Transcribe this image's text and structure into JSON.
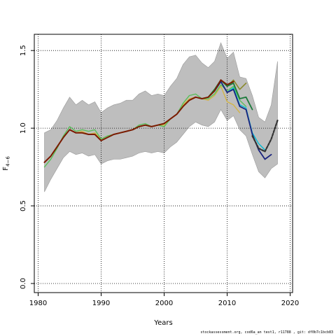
{
  "chart_data": {
    "type": "line",
    "xlabel": "Years",
    "ylabel": "F",
    "ylabel_subscript": "4−6",
    "xlim": [
      1980,
      2020
    ],
    "ylim": [
      0.0,
      1.6
    ],
    "x_ticks": [
      1980,
      1990,
      2000,
      2010,
      2020
    ],
    "y_ticks": [
      0.0,
      0.5,
      1.0,
      1.5
    ],
    "y_tick_labels": [
      "0.0",
      "0.5",
      "1.0",
      "1.5"
    ],
    "grid": "dotted",
    "confidence_band": {
      "color": "#bebebe",
      "x": [
        1981,
        1982,
        1983,
        1984,
        1985,
        1986,
        1987,
        1988,
        1989,
        1990,
        1991,
        1992,
        1993,
        1994,
        1995,
        1996,
        1997,
        1998,
        1999,
        2000,
        2001,
        2002,
        2003,
        2004,
        2005,
        2006,
        2007,
        2008,
        2009,
        2010,
        2011,
        2012,
        2013,
        2014,
        2015,
        2016,
        2017,
        2018
      ],
      "upper": [
        0.97,
        0.99,
        1.05,
        1.13,
        1.2,
        1.15,
        1.18,
        1.15,
        1.17,
        1.1,
        1.13,
        1.15,
        1.16,
        1.18,
        1.18,
        1.22,
        1.24,
        1.21,
        1.22,
        1.21,
        1.27,
        1.32,
        1.41,
        1.46,
        1.47,
        1.42,
        1.39,
        1.43,
        1.55,
        1.45,
        1.49,
        1.33,
        1.32,
        1.21,
        1.07,
        1.04,
        1.15,
        1.43
      ],
      "lower": [
        0.59,
        0.67,
        0.74,
        0.81,
        0.85,
        0.83,
        0.84,
        0.82,
        0.83,
        0.77,
        0.79,
        0.8,
        0.8,
        0.81,
        0.82,
        0.84,
        0.85,
        0.84,
        0.85,
        0.84,
        0.88,
        0.91,
        0.96,
        1.01,
        1.04,
        1.02,
        1.01,
        1.04,
        1.12,
        1.05,
        1.08,
        0.99,
        0.95,
        0.83,
        0.72,
        0.68,
        0.74,
        0.77
      ]
    },
    "series": [
      {
        "color": "#d2b446",
        "width": 1.4,
        "dash": "",
        "x": [
          1981,
          1982,
          1983,
          1984,
          1985,
          1986,
          1987,
          1988,
          1989,
          1990,
          1991,
          1992,
          1993,
          1994,
          1995,
          1996,
          1997,
          1998,
          1999,
          2000,
          2001,
          2002,
          2003,
          2004,
          2005,
          2006,
          2007,
          2008,
          2009,
          2010,
          2011,
          2012
        ],
        "values": [
          0.78,
          0.82,
          0.88,
          0.94,
          0.99,
          0.97,
          0.98,
          0.96,
          0.97,
          0.93,
          0.95,
          0.96,
          0.97,
          0.98,
          0.99,
          1.01,
          1.02,
          1.01,
          1.02,
          1.02,
          1.06,
          1.09,
          1.15,
          1.19,
          1.2,
          1.19,
          1.18,
          1.21,
          1.27,
          1.17,
          1.15,
          1.1
        ]
      },
      {
        "color": "#5bbf5b",
        "width": 1.4,
        "dash": "",
        "x": [
          1981,
          1982,
          1983,
          1984,
          1985,
          1986,
          1987,
          1988,
          1989,
          1990,
          1991,
          1992,
          1993,
          1994,
          1995,
          1996,
          1997,
          1998,
          1999,
          2000,
          2001,
          2002,
          2003,
          2004,
          2005,
          2006,
          2007,
          2008,
          2009,
          2010,
          2011,
          2012,
          2013
        ],
        "values": [
          0.75,
          0.8,
          0.87,
          0.95,
          1.01,
          0.98,
          0.99,
          0.98,
          0.99,
          0.93,
          0.95,
          0.96,
          0.97,
          0.98,
          0.99,
          1.02,
          1.03,
          1.01,
          1.02,
          1.01,
          1.06,
          1.09,
          1.16,
          1.21,
          1.22,
          1.19,
          1.19,
          1.22,
          1.28,
          1.24,
          1.27,
          1.18,
          1.14
        ]
      },
      {
        "color": "#8a8a2a",
        "width": 1.6,
        "dash": "",
        "x": [
          2007,
          2008,
          2009,
          2010,
          2011,
          2012,
          2013
        ],
        "values": [
          1.2,
          1.24,
          1.31,
          1.27,
          1.31,
          1.25,
          1.29
        ]
      },
      {
        "color": "#1a7a3a",
        "width": 1.8,
        "dash": "",
        "x": [
          2007,
          2008,
          2009,
          2010,
          2011,
          2012,
          2013,
          2014
        ],
        "values": [
          1.2,
          1.25,
          1.31,
          1.27,
          1.29,
          1.19,
          1.2,
          1.12
        ]
      },
      {
        "color": "#00bcd4",
        "width": 1.4,
        "dash": "",
        "x": [
          2008,
          2009,
          2010,
          2011,
          2012,
          2013,
          2014,
          2015,
          2016
        ],
        "values": [
          1.24,
          1.3,
          1.23,
          1.26,
          1.15,
          1.13,
          0.97,
          0.9,
          0.86
        ]
      },
      {
        "color": "#1a237e",
        "width": 1.8,
        "dash": "",
        "x": [
          2008,
          2009,
          2010,
          2011,
          2012,
          2013,
          2014,
          2015,
          2016,
          2017
        ],
        "values": [
          1.24,
          1.3,
          1.23,
          1.25,
          1.14,
          1.12,
          0.96,
          0.86,
          0.8,
          0.83
        ]
      },
      {
        "color": "#333333",
        "width": 2.2,
        "dash": "3,2",
        "x": [
          2014,
          2015,
          2016,
          2017,
          2018
        ],
        "values": [
          0.95,
          0.87,
          0.85,
          0.93,
          1.05
        ]
      },
      {
        "color": "#7a1a00",
        "width": 2.0,
        "dash": "",
        "x": [
          1981,
          1982,
          1983,
          1984,
          1985,
          1986,
          1987,
          1988,
          1989,
          1990,
          1991,
          1992,
          1993,
          1994,
          1995,
          1996,
          1997,
          1998,
          1999,
          2000,
          2001,
          2002,
          2003,
          2004,
          2005,
          2006,
          2007,
          2008,
          2009,
          2010,
          2011
        ],
        "values": [
          0.78,
          0.82,
          0.88,
          0.94,
          0.99,
          0.97,
          0.97,
          0.96,
          0.96,
          0.92,
          0.94,
          0.96,
          0.97,
          0.98,
          0.99,
          1.01,
          1.02,
          1.01,
          1.02,
          1.03,
          1.06,
          1.09,
          1.14,
          1.18,
          1.2,
          1.19,
          1.2,
          1.24,
          1.31,
          1.28,
          1.3
        ]
      }
    ]
  },
  "footer": "stockassessment.org, cod6a_an test1, r11788 , git: df0b7c1bcb83"
}
